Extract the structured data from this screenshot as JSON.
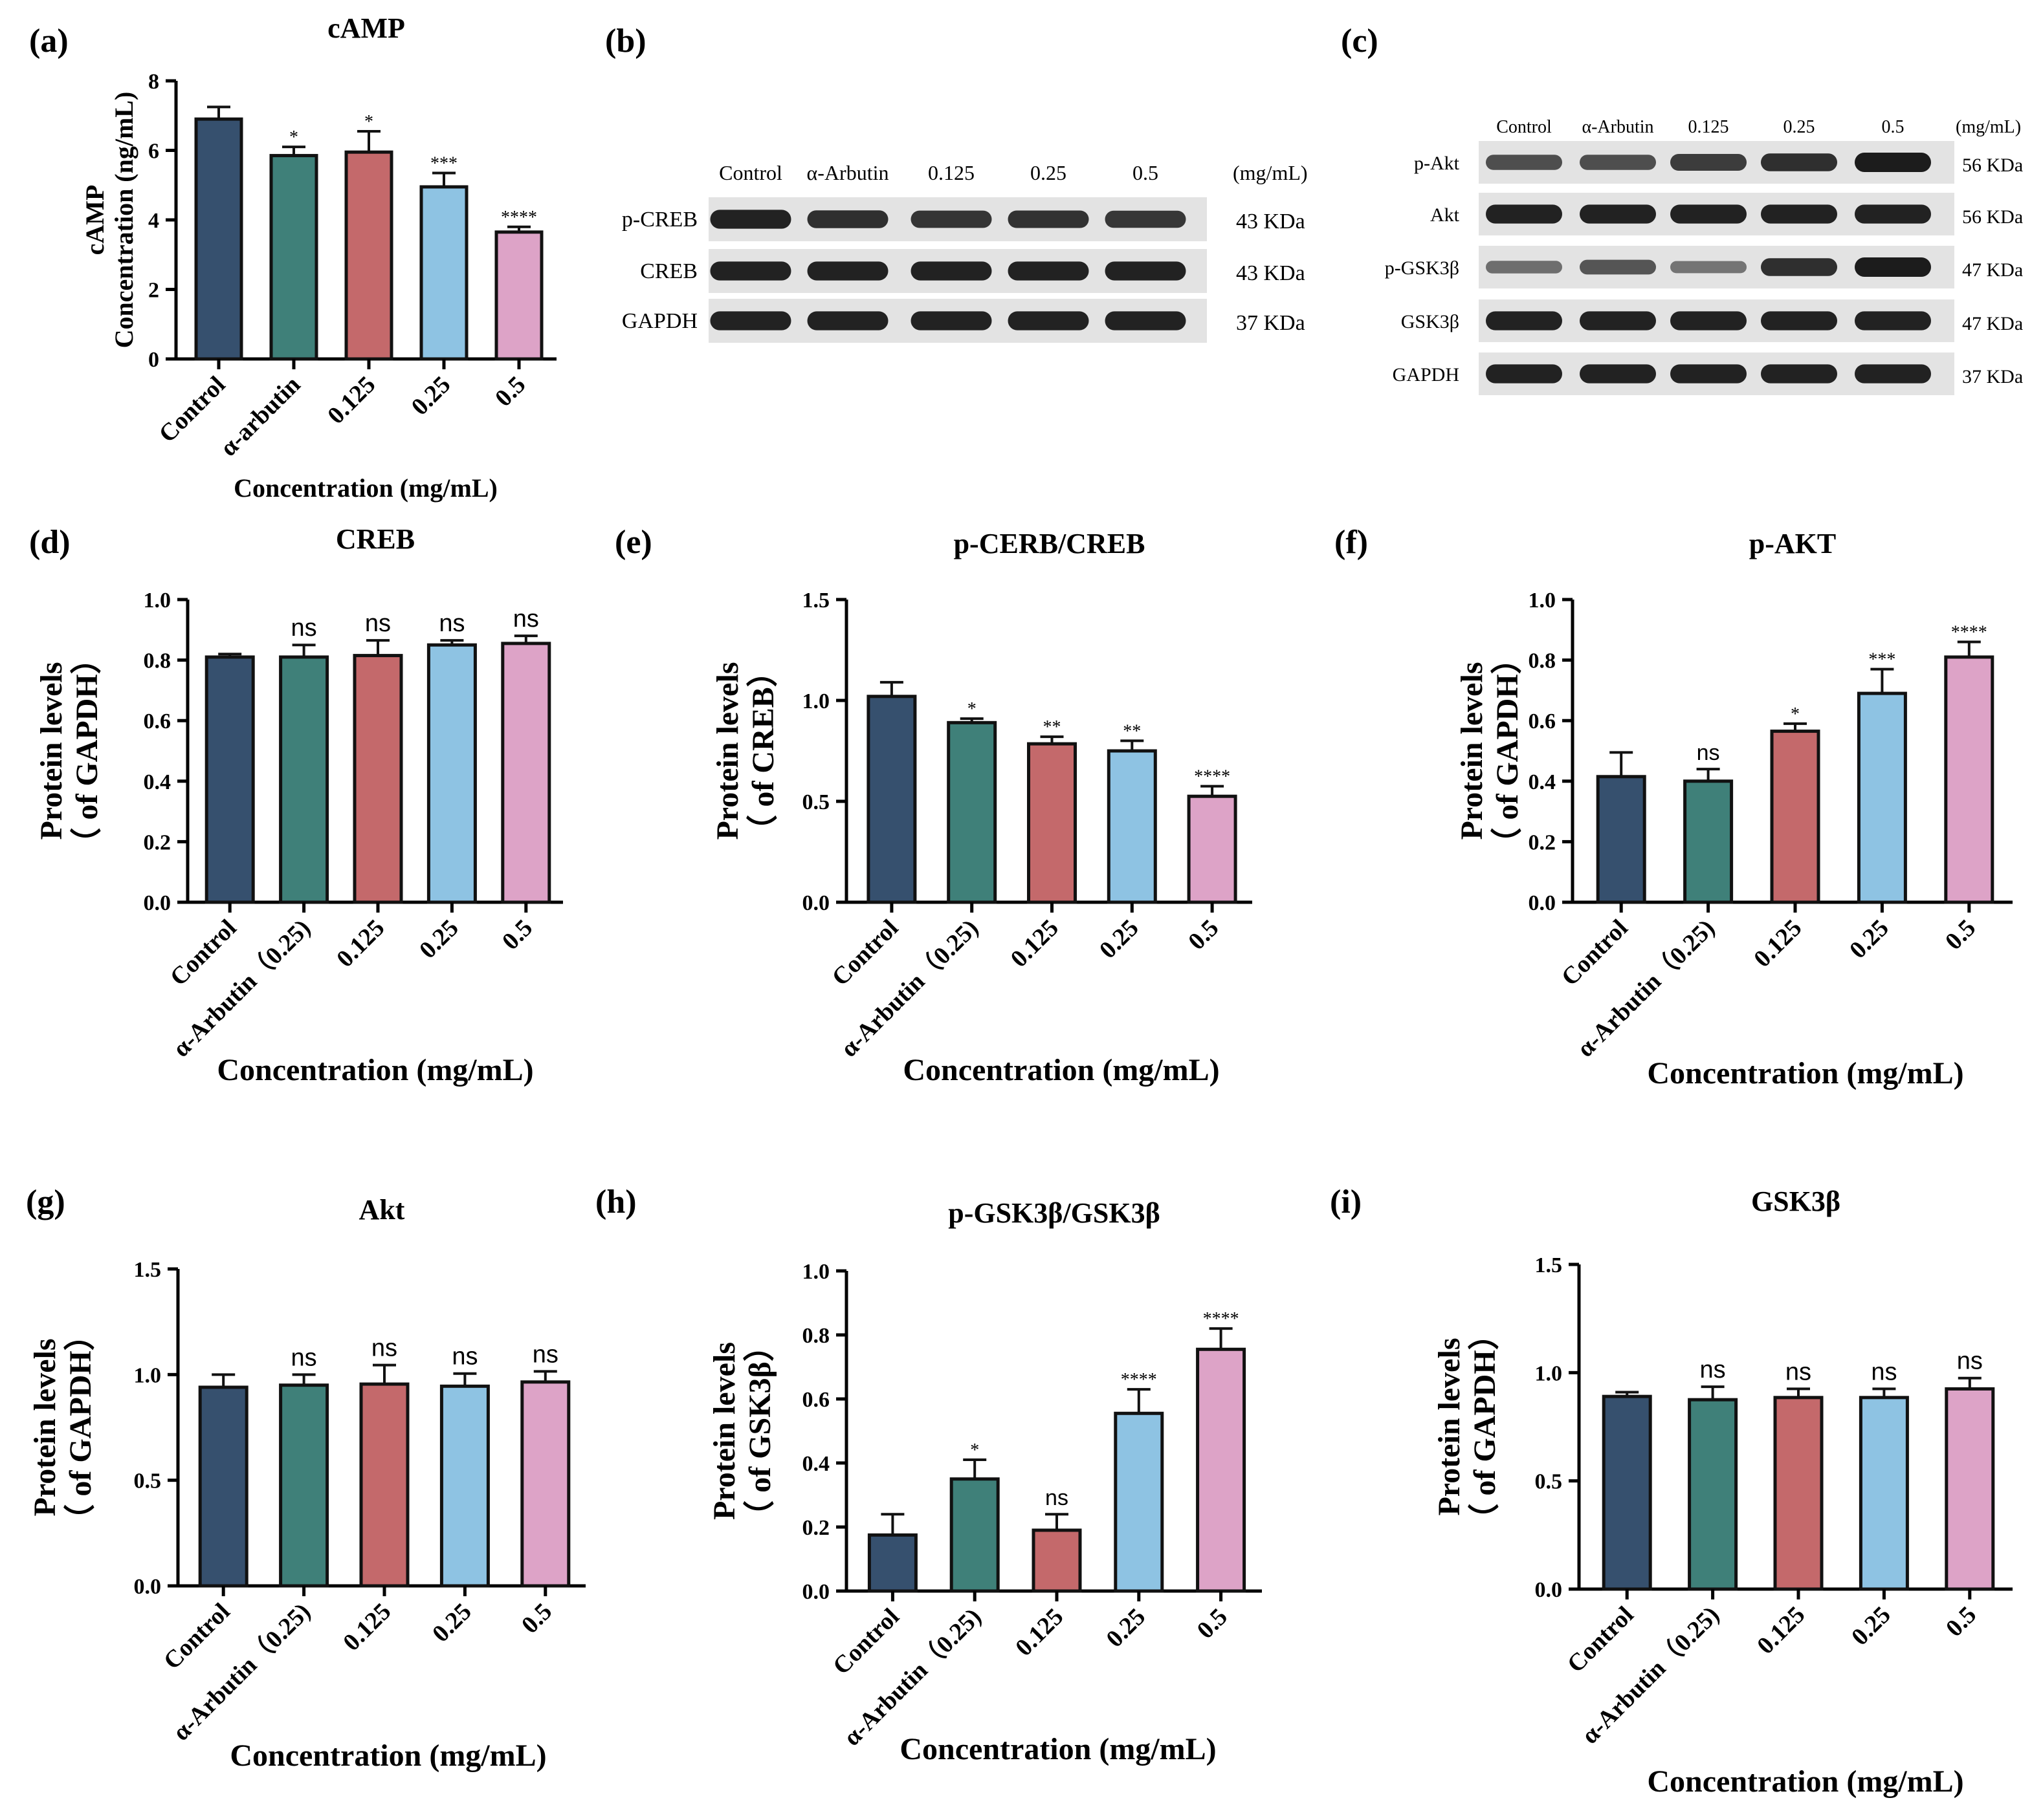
{
  "colors": {
    "bars": [
      "#36506e",
      "#3f8079",
      "#c4696b",
      "#8ec3e3",
      "#dda3c7"
    ],
    "outline": "#111111"
  },
  "chart_data": [
    {
      "id": "a",
      "panel_label": "(a)",
      "type": "bar",
      "title": "cAMP",
      "ylabel_lines": [
        "cAMP",
        "Concentration (ng/mL)"
      ],
      "xlabel": "Concentration (mg/mL)",
      "categories": [
        "Control",
        "α-arbutin",
        "0.125",
        "0.25",
        "0.5"
      ],
      "values": [
        6.9,
        5.85,
        5.95,
        4.95,
        3.65
      ],
      "errors": [
        0.35,
        0.25,
        0.6,
        0.4,
        0.15
      ],
      "significance": [
        "",
        "*",
        "*",
        "***",
        "****"
      ],
      "ylim": [
        0,
        8
      ],
      "yticks": [
        "0",
        "2",
        "4",
        "6",
        "8"
      ]
    },
    {
      "id": "d",
      "panel_label": "(d)",
      "type": "bar",
      "title": "CREB",
      "ylabel_lines": [
        "Protein levels",
        "（ of GAPDH）"
      ],
      "xlabel": "Concentration (mg/mL)",
      "categories": [
        "Control",
        "α-Arbutin（0.25)",
        "0.125",
        "0.25",
        "0.5"
      ],
      "values": [
        0.81,
        0.81,
        0.815,
        0.85,
        0.855
      ],
      "errors": [
        0.01,
        0.04,
        0.05,
        0.015,
        0.025
      ],
      "significance": [
        "",
        "ns",
        "ns",
        "ns",
        "ns"
      ],
      "ylim": [
        0,
        1.0
      ],
      "yticks": [
        "0.0",
        "0.2",
        "0.4",
        "0.6",
        "0.8",
        "1.0"
      ]
    },
    {
      "id": "e",
      "panel_label": "(e)",
      "type": "bar",
      "title": "p-CERB/CREB",
      "ylabel_lines": [
        "Protein levels",
        "（ of CREB）"
      ],
      "xlabel": "Concentration (mg/mL)",
      "categories": [
        "Control",
        "α-Arbutin（0.25)",
        "0.125",
        "0.25",
        "0.5"
      ],
      "values": [
        1.02,
        0.89,
        0.785,
        0.75,
        0.525
      ],
      "errors": [
        0.07,
        0.02,
        0.035,
        0.05,
        0.05
      ],
      "significance": [
        "",
        "*",
        "**",
        "**",
        "****"
      ],
      "ylim": [
        0,
        1.5
      ],
      "yticks": [
        "0.0",
        "0.5",
        "1.0",
        "1.5"
      ]
    },
    {
      "id": "f",
      "panel_label": "(f)",
      "type": "bar",
      "title": "p-AKT",
      "ylabel_lines": [
        "Protein levels",
        "（ of GAPDH）"
      ],
      "xlabel": "Concentration (mg/mL)",
      "categories": [
        "Control",
        "α-Arbutin（0.25)",
        "0.125",
        "0.25",
        "0.5"
      ],
      "values": [
        0.415,
        0.4,
        0.565,
        0.69,
        0.81
      ],
      "errors": [
        0.08,
        0.04,
        0.025,
        0.08,
        0.05
      ],
      "significance": [
        "",
        "ns",
        "*",
        "***",
        "****"
      ],
      "ylim": [
        0,
        1.0
      ],
      "yticks": [
        "0.0",
        "0.2",
        "0.4",
        "0.6",
        "0.8",
        "1.0"
      ]
    },
    {
      "id": "g",
      "panel_label": "(g)",
      "type": "bar",
      "title": "Akt",
      "ylabel_lines": [
        "Protein levels",
        "（ of GAPDH）"
      ],
      "xlabel": "Concentration (mg/mL)",
      "categories": [
        "Control",
        "α-Arbutin（0.25)",
        "0.125",
        "0.25",
        "0.5"
      ],
      "values": [
        0.94,
        0.95,
        0.955,
        0.945,
        0.965
      ],
      "errors": [
        0.06,
        0.05,
        0.09,
        0.06,
        0.05
      ],
      "significance": [
        "",
        "ns",
        "ns",
        "ns",
        "ns"
      ],
      "ylim": [
        0,
        1.5
      ],
      "yticks": [
        "0.0",
        "0.5",
        "1.0",
        "1.5"
      ]
    },
    {
      "id": "h",
      "panel_label": "(h)",
      "type": "bar",
      "title": "p-GSK3β/GSK3β",
      "ylabel_lines": [
        "Protein levels",
        "（ of GSK3β）"
      ],
      "xlabel": "Concentration (mg/mL)",
      "categories": [
        "Control",
        "α-Arbutin（0.25)",
        "0.125",
        "0.25",
        "0.5"
      ],
      "values": [
        0.175,
        0.35,
        0.19,
        0.555,
        0.755
      ],
      "errors": [
        0.065,
        0.06,
        0.05,
        0.075,
        0.065
      ],
      "significance": [
        "",
        "*",
        "ns",
        "****",
        "****"
      ],
      "ylim": [
        0,
        1.0
      ],
      "yticks": [
        "0.0",
        "0.2",
        "0.4",
        "0.6",
        "0.8",
        "1.0"
      ]
    },
    {
      "id": "i",
      "panel_label": "(i)",
      "type": "bar",
      "title": "GSK3β",
      "ylabel_lines": [
        "Protein levels",
        "（ of GAPDH）"
      ],
      "xlabel": "Concentration (mg/mL)",
      "categories": [
        "Control",
        "α-Arbutin（0.25)",
        "0.125",
        "0.25",
        "0.5"
      ],
      "values": [
        0.89,
        0.875,
        0.885,
        0.885,
        0.925
      ],
      "errors": [
        0.02,
        0.06,
        0.04,
        0.04,
        0.05
      ],
      "significance": [
        "",
        "ns",
        "ns",
        "ns",
        "ns"
      ],
      "ylim": [
        0,
        1.5
      ],
      "yticks": [
        "0.0",
        "0.5",
        "1.0",
        "1.5"
      ]
    }
  ],
  "blots": [
    {
      "id": "b",
      "panel_label": "(b)",
      "lanes": [
        "Control",
        "α-Arbutin",
        "0.125",
        "0.25",
        "0.5"
      ],
      "unit": "(mg/mL)",
      "rows": [
        {
          "name": "p-CREB",
          "size": "43 KDa",
          "intensity": [
            0.95,
            0.85,
            0.8,
            0.82,
            0.78
          ]
        },
        {
          "name": "CREB",
          "size": "43 KDa",
          "intensity": [
            0.95,
            0.95,
            0.95,
            0.95,
            0.95
          ]
        },
        {
          "name": "GAPDH",
          "size": "37 KDa",
          "intensity": [
            0.95,
            0.95,
            0.95,
            0.95,
            0.95
          ]
        }
      ]
    },
    {
      "id": "c",
      "panel_label": "(c)",
      "lanes": [
        "Control",
        "α-Arbutin",
        "0.125",
        "0.25",
        "0.5"
      ],
      "unit": "(mg/mL)",
      "rows": [
        {
          "name": "p-Akt",
          "size": "56 KDa",
          "intensity": [
            0.6,
            0.6,
            0.75,
            0.85,
            1.0
          ]
        },
        {
          "name": "Akt",
          "size": "56 KDa",
          "intensity": [
            0.95,
            0.95,
            0.95,
            0.95,
            0.95
          ]
        },
        {
          "name": "p-GSK3β",
          "size": "47 KDa",
          "intensity": [
            0.35,
            0.55,
            0.3,
            0.85,
            1.0
          ]
        },
        {
          "name": "GSK3β",
          "size": "47 KDa",
          "intensity": [
            0.95,
            0.95,
            0.95,
            0.95,
            0.95
          ]
        },
        {
          "name": "GAPDH",
          "size": "37 KDa",
          "intensity": [
            0.95,
            0.95,
            0.95,
            0.95,
            0.95
          ]
        }
      ]
    }
  ]
}
